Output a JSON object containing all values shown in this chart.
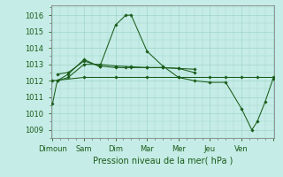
{
  "background_color": "#c5ece6",
  "grid_color": "#a0d4cc",
  "line_color": "#1a5c1a",
  "xlabel": "Pression niveau de la mer( hPa )",
  "xlabel_fontsize": 7.0,
  "tick_fontsize": 6.0,
  "ylim": [
    1008.5,
    1016.6
  ],
  "yticks": [
    1009,
    1010,
    1011,
    1012,
    1013,
    1014,
    1015,
    1016
  ],
  "x_labels": [
    "Dimoun",
    "Sam",
    "Dim",
    "Mar",
    "Mer",
    "Jeu",
    "Ven"
  ],
  "xlim": [
    -0.05,
    7.05
  ],
  "series1_x": [
    0.0,
    0.15,
    0.5,
    1.0,
    1.5,
    2.0,
    2.33,
    2.5,
    3.0,
    3.5,
    4.0,
    4.5,
    5.0,
    5.5,
    6.0,
    6.33,
    6.5,
    6.75,
    7.0
  ],
  "series1_y": [
    1010.6,
    1012.0,
    1012.4,
    1013.3,
    1012.85,
    1015.4,
    1016.0,
    1016.0,
    1013.8,
    1012.9,
    1012.2,
    1012.0,
    1011.9,
    1011.9,
    1010.3,
    1009.0,
    1009.5,
    1010.7,
    1012.1
  ],
  "series2_x": [
    0.15,
    0.5,
    1.0,
    1.5,
    2.0,
    2.33,
    2.5,
    3.0,
    3.5,
    4.0,
    4.5
  ],
  "series2_y": [
    1012.4,
    1012.5,
    1013.2,
    1012.9,
    1012.8,
    1012.8,
    1012.8,
    1012.8,
    1012.8,
    1012.75,
    1012.5
  ],
  "series3_x": [
    0.15,
    0.5,
    1.0,
    1.5,
    2.0,
    2.5,
    3.0,
    3.5,
    4.0,
    4.5
  ],
  "series3_y": [
    1012.0,
    1012.2,
    1013.0,
    1013.0,
    1012.9,
    1012.85,
    1012.8,
    1012.8,
    1012.75,
    1012.7
  ],
  "series4_x": [
    0.0,
    1.0,
    2.0,
    3.0,
    4.0,
    5.0,
    5.5,
    6.0,
    6.5,
    7.0
  ],
  "series4_y": [
    1012.0,
    1012.2,
    1012.2,
    1012.2,
    1012.2,
    1012.2,
    1012.2,
    1012.2,
    1012.2,
    1012.2
  ]
}
